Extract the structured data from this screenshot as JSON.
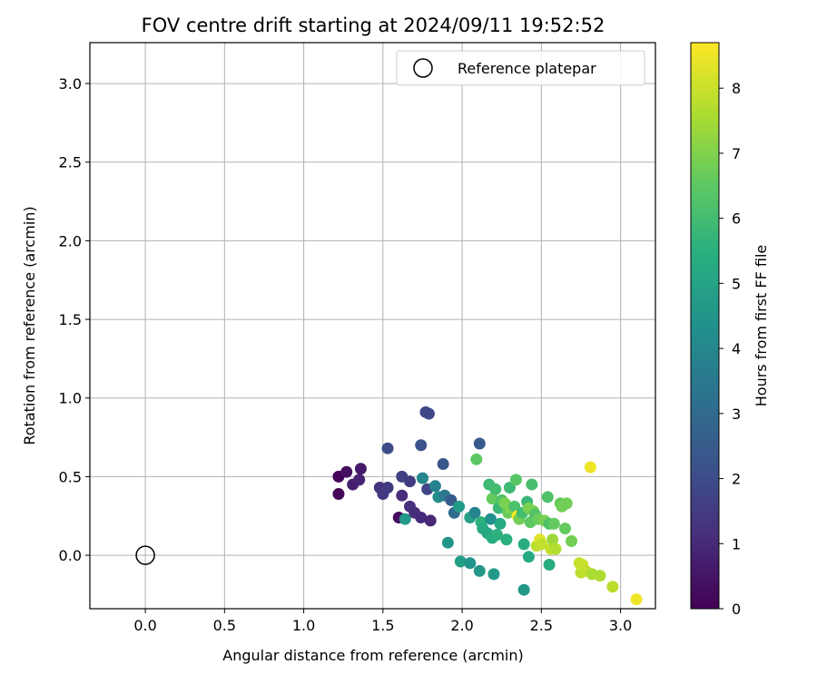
{
  "chart_data": {
    "type": "scatter",
    "title": "FOV centre drift starting at 2024/09/11 19:52:52",
    "xlabel": "Angular distance from reference (arcmin)",
    "ylabel": "Rotation from reference (arcmin)",
    "xlim": [
      -0.35,
      3.22
    ],
    "ylim": [
      -0.34,
      3.26
    ],
    "xticks": [
      0.0,
      0.5,
      1.0,
      1.5,
      2.0,
      2.5,
      3.0
    ],
    "yticks": [
      0.0,
      0.5,
      1.0,
      1.5,
      2.0,
      2.5,
      3.0
    ],
    "xtick_labels": [
      "0.0",
      "0.5",
      "1.0",
      "1.5",
      "2.0",
      "2.5",
      "3.0"
    ],
    "ytick_labels": [
      "0.0",
      "0.5",
      "1.0",
      "1.5",
      "2.0",
      "2.5",
      "3.0"
    ],
    "grid": true,
    "colormap": "viridis",
    "colorbar": {
      "label": "Hours from first FF file",
      "range": [
        0,
        8.7
      ],
      "ticks": [
        0,
        1,
        2,
        3,
        4,
        5,
        6,
        7,
        8
      ],
      "tick_labels": [
        "0",
        "1",
        "2",
        "3",
        "4",
        "5",
        "6",
        "7",
        "8"
      ]
    },
    "legend": {
      "placement": "upper-right",
      "entries": [
        {
          "label": "Reference platepar",
          "marker": "hollow-circle"
        }
      ]
    },
    "reference_point": {
      "x": 0.0,
      "y": 0.0
    },
    "points": [
      {
        "x": 1.22,
        "y": 0.5,
        "h": 0.05
      },
      {
        "x": 1.22,
        "y": 0.39,
        "h": 0.15
      },
      {
        "x": 1.27,
        "y": 0.53,
        "h": 0.35
      },
      {
        "x": 1.31,
        "y": 0.45,
        "h": 0.75
      },
      {
        "x": 1.35,
        "y": 0.48,
        "h": 0.85
      },
      {
        "x": 1.36,
        "y": 0.55,
        "h": 0.6
      },
      {
        "x": 1.48,
        "y": 0.43,
        "h": 1.25
      },
      {
        "x": 1.5,
        "y": 0.39,
        "h": 1.4
      },
      {
        "x": 1.53,
        "y": 0.43,
        "h": 1.5
      },
      {
        "x": 1.53,
        "y": 0.68,
        "h": 2.0
      },
      {
        "x": 1.6,
        "y": 0.24,
        "h": 0.25
      },
      {
        "x": 1.62,
        "y": 0.38,
        "h": 1.1
      },
      {
        "x": 1.62,
        "y": 0.5,
        "h": 1.65
      },
      {
        "x": 1.64,
        "y": 0.23,
        "h": 4.6
      },
      {
        "x": 1.67,
        "y": 0.47,
        "h": 1.55
      },
      {
        "x": 1.67,
        "y": 0.31,
        "h": 1.2
      },
      {
        "x": 1.7,
        "y": 0.27,
        "h": 1.1
      },
      {
        "x": 1.74,
        "y": 0.24,
        "h": 1.05
      },
      {
        "x": 1.74,
        "y": 0.7,
        "h": 2.2
      },
      {
        "x": 1.75,
        "y": 0.49,
        "h": 4.0
      },
      {
        "x": 1.77,
        "y": 0.91,
        "h": 1.9
      },
      {
        "x": 1.78,
        "y": 0.42,
        "h": 1.8
      },
      {
        "x": 1.79,
        "y": 0.9,
        "h": 1.85
      },
      {
        "x": 1.8,
        "y": 0.22,
        "h": 1.0
      },
      {
        "x": 1.83,
        "y": 0.44,
        "h": 3.8
      },
      {
        "x": 1.85,
        "y": 0.37,
        "h": 4.2
      },
      {
        "x": 1.88,
        "y": 0.58,
        "h": 2.3
      },
      {
        "x": 1.89,
        "y": 0.38,
        "h": 3.5
      },
      {
        "x": 1.91,
        "y": 0.08,
        "h": 4.5
      },
      {
        "x": 1.93,
        "y": 0.35,
        "h": 2.5
      },
      {
        "x": 1.95,
        "y": 0.27,
        "h": 3.0
      },
      {
        "x": 1.98,
        "y": 0.31,
        "h": 4.7
      },
      {
        "x": 1.99,
        "y": -0.04,
        "h": 4.8
      },
      {
        "x": 2.05,
        "y": -0.05,
        "h": 4.5
      },
      {
        "x": 2.05,
        "y": 0.24,
        "h": 4.9
      },
      {
        "x": 2.08,
        "y": 0.27,
        "h": 3.9
      },
      {
        "x": 2.09,
        "y": 0.61,
        "h": 6.5
      },
      {
        "x": 2.11,
        "y": 0.71,
        "h": 2.4
      },
      {
        "x": 2.11,
        "y": -0.1,
        "h": 4.6
      },
      {
        "x": 2.12,
        "y": 0.21,
        "h": 5.6
      },
      {
        "x": 2.13,
        "y": 0.17,
        "h": 5.3
      },
      {
        "x": 2.16,
        "y": 0.14,
        "h": 5.2
      },
      {
        "x": 2.17,
        "y": 0.45,
        "h": 5.9
      },
      {
        "x": 2.18,
        "y": 0.23,
        "h": 4.3
      },
      {
        "x": 2.19,
        "y": 0.36,
        "h": 6.6
      },
      {
        "x": 2.19,
        "y": 0.11,
        "h": 5.4
      },
      {
        "x": 2.2,
        "y": -0.12,
        "h": 4.7
      },
      {
        "x": 2.21,
        "y": 0.42,
        "h": 6.0
      },
      {
        "x": 2.22,
        "y": 0.13,
        "h": 5.5
      },
      {
        "x": 2.23,
        "y": 0.3,
        "h": 5.8
      },
      {
        "x": 2.24,
        "y": 0.2,
        "h": 5.2
      },
      {
        "x": 2.25,
        "y": 0.35,
        "h": 6.3
      },
      {
        "x": 2.27,
        "y": 0.33,
        "h": 6.9
      },
      {
        "x": 2.28,
        "y": 0.1,
        "h": 5.5
      },
      {
        "x": 2.29,
        "y": 0.27,
        "h": 6.7
      },
      {
        "x": 2.3,
        "y": 0.43,
        "h": 5.9
      },
      {
        "x": 2.31,
        "y": 0.3,
        "h": 7.0
      },
      {
        "x": 2.33,
        "y": 0.31,
        "h": 6.2
      },
      {
        "x": 2.34,
        "y": 0.48,
        "h": 6.4
      },
      {
        "x": 2.35,
        "y": 0.25,
        "h": 8.7
      },
      {
        "x": 2.36,
        "y": 0.23,
        "h": 6.8
      },
      {
        "x": 2.38,
        "y": 0.27,
        "h": 6.0
      },
      {
        "x": 2.39,
        "y": 0.07,
        "h": 5.4
      },
      {
        "x": 2.39,
        "y": -0.22,
        "h": 4.6
      },
      {
        "x": 2.41,
        "y": 0.34,
        "h": 5.8
      },
      {
        "x": 2.42,
        "y": 0.3,
        "h": 6.9
      },
      {
        "x": 2.42,
        "y": -0.01,
        "h": 5.3
      },
      {
        "x": 2.43,
        "y": 0.21,
        "h": 6.5
      },
      {
        "x": 2.44,
        "y": 0.45,
        "h": 6.1
      },
      {
        "x": 2.45,
        "y": 0.28,
        "h": 6.9
      },
      {
        "x": 2.46,
        "y": 0.26,
        "h": 6.3
      },
      {
        "x": 2.47,
        "y": 0.06,
        "h": 7.8
      },
      {
        "x": 2.48,
        "y": 0.23,
        "h": 6.7
      },
      {
        "x": 2.49,
        "y": 0.1,
        "h": 8.3
      },
      {
        "x": 2.5,
        "y": 0.07,
        "h": 7.9
      },
      {
        "x": 2.52,
        "y": 0.22,
        "h": 6.9
      },
      {
        "x": 2.54,
        "y": 0.37,
        "h": 6.2
      },
      {
        "x": 2.55,
        "y": 0.2,
        "h": 6.2
      },
      {
        "x": 2.55,
        "y": -0.06,
        "h": 5.4
      },
      {
        "x": 2.56,
        "y": 0.04,
        "h": 7.9
      },
      {
        "x": 2.57,
        "y": 0.1,
        "h": 7.4
      },
      {
        "x": 2.58,
        "y": 0.2,
        "h": 6.6
      },
      {
        "x": 2.59,
        "y": 0.04,
        "h": 7.7
      },
      {
        "x": 2.62,
        "y": 0.33,
        "h": 6.6
      },
      {
        "x": 2.63,
        "y": 0.31,
        "h": 6.8
      },
      {
        "x": 2.65,
        "y": 0.17,
        "h": 6.6
      },
      {
        "x": 2.66,
        "y": 0.33,
        "h": 6.8
      },
      {
        "x": 2.69,
        "y": 0.09,
        "h": 6.8
      },
      {
        "x": 2.74,
        "y": -0.05,
        "h": 7.9
      },
      {
        "x": 2.75,
        "y": -0.11,
        "h": 7.8
      },
      {
        "x": 2.76,
        "y": -0.06,
        "h": 8.0
      },
      {
        "x": 2.78,
        "y": -0.1,
        "h": 7.9
      },
      {
        "x": 2.81,
        "y": 0.56,
        "h": 8.5
      },
      {
        "x": 2.82,
        "y": -0.12,
        "h": 7.6
      },
      {
        "x": 2.87,
        "y": -0.13,
        "h": 7.6
      },
      {
        "x": 2.95,
        "y": -0.2,
        "h": 7.8
      },
      {
        "x": 3.1,
        "y": -0.28,
        "h": 8.5
      }
    ]
  }
}
